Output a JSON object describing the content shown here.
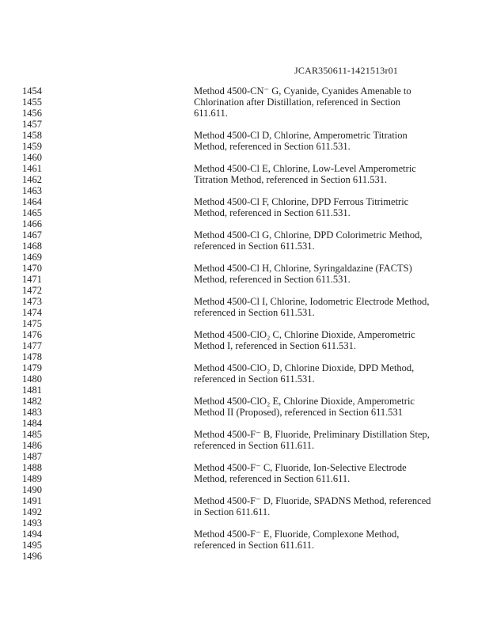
{
  "header": {
    "document_id": "JCAR350611-1421513r01"
  },
  "body": {
    "lines": [
      {
        "num": "1454",
        "text": "Method 4500-CN⁻ G, Cyanide, Cyanides Amenable to"
      },
      {
        "num": "1455",
        "text": "Chlorination after Distillation, referenced in Section"
      },
      {
        "num": "1456",
        "text": "611.611."
      },
      {
        "num": "1457",
        "text": ""
      },
      {
        "num": "1458",
        "text": "Method 4500-Cl D, Chlorine, Amperometric Titration"
      },
      {
        "num": "1459",
        "text": "Method, referenced in Section 611.531."
      },
      {
        "num": "1460",
        "text": ""
      },
      {
        "num": "1461",
        "text": "Method 4500-Cl E, Chlorine, Low-Level Amperometric"
      },
      {
        "num": "1462",
        "text": "Titration Method, referenced in Section 611.531."
      },
      {
        "num": "1463",
        "text": ""
      },
      {
        "num": "1464",
        "text": "Method 4500-Cl F, Chlorine, DPD Ferrous Titrimetric"
      },
      {
        "num": "1465",
        "text": "Method, referenced in Section 611.531."
      },
      {
        "num": "1466",
        "text": ""
      },
      {
        "num": "1467",
        "text": "Method 4500-Cl G, Chlorine, DPD Colorimetric Method,"
      },
      {
        "num": "1468",
        "text": "referenced in Section 611.531."
      },
      {
        "num": "1469",
        "text": ""
      },
      {
        "num": "1470",
        "text": "Method 4500-Cl H, Chlorine, Syringaldazine (FACTS)"
      },
      {
        "num": "1471",
        "text": "Method, referenced in Section 611.531."
      },
      {
        "num": "1472",
        "text": ""
      },
      {
        "num": "1473",
        "text": "Method 4500-Cl I, Chlorine, Iodometric Electrode Method,"
      },
      {
        "num": "1474",
        "text": "referenced in Section 611.531."
      },
      {
        "num": "1475",
        "text": ""
      },
      {
        "num": "1476",
        "text": "Method 4500-ClO₂ C, Chlorine Dioxide, Amperometric"
      },
      {
        "num": "1477",
        "text": "Method I, referenced in Section 611.531."
      },
      {
        "num": "1478",
        "text": ""
      },
      {
        "num": "1479",
        "text": "Method 4500-ClO₂ D, Chlorine Dioxide, DPD Method,"
      },
      {
        "num": "1480",
        "text": "referenced in Section 611.531."
      },
      {
        "num": "1481",
        "text": ""
      },
      {
        "num": "1482",
        "text": "Method 4500-ClO₂ E, Chlorine Dioxide, Amperometric"
      },
      {
        "num": "1483",
        "text": "Method II (Proposed), referenced in Section 611.531"
      },
      {
        "num": "1484",
        "text": ""
      },
      {
        "num": "1485",
        "text": "Method 4500-F⁻ B, Fluoride, Preliminary Distillation Step,"
      },
      {
        "num": "1486",
        "text": "referenced in Section 611.611."
      },
      {
        "num": "1487",
        "text": ""
      },
      {
        "num": "1488",
        "text": "Method 4500-F⁻ C, Fluoride, Ion-Selective Electrode"
      },
      {
        "num": "1489",
        "text": "Method, referenced in Section 611.611."
      },
      {
        "num": "1490",
        "text": ""
      },
      {
        "num": "1491",
        "text": "Method 4500-F⁻ D, Fluoride, SPADNS Method, referenced"
      },
      {
        "num": "1492",
        "text": "in Section 611.611."
      },
      {
        "num": "1493",
        "text": ""
      },
      {
        "num": "1494",
        "text": "Method 4500-F⁻ E, Fluoride, Complexone Method,"
      },
      {
        "num": "1495",
        "text": "referenced in Section 611.611."
      },
      {
        "num": "1496",
        "text": ""
      }
    ]
  }
}
